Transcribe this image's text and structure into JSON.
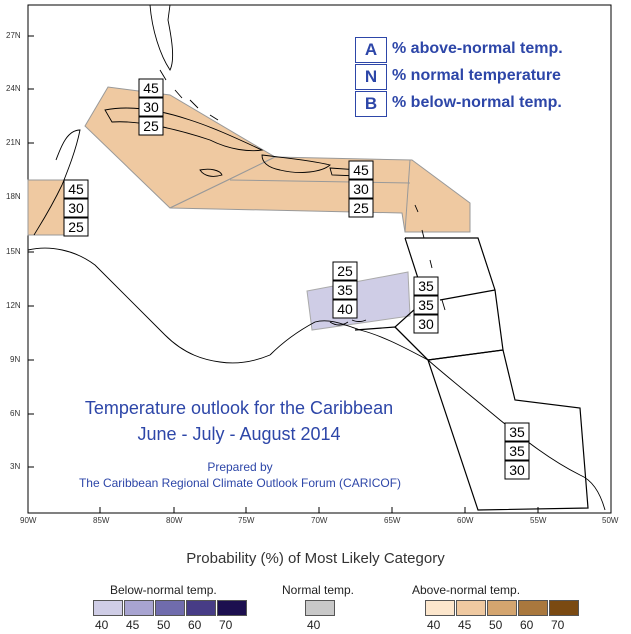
{
  "legend": [
    {
      "key": "A",
      "text": "% above-normal temp."
    },
    {
      "key": "N",
      "text": "% normal temperature"
    },
    {
      "key": "B",
      "text": "% below-normal temp."
    }
  ],
  "title": {
    "line1": "Temperature outlook for the Caribbean",
    "line2": "June - July - August 2014"
  },
  "prepared": {
    "line1": "Prepared by",
    "line2": "The Caribbean Regional Climate Outlook Forum (CARICOF)"
  },
  "axes": {
    "lat_labels": [
      "27N",
      "24N",
      "21N",
      "18N",
      "15N",
      "12N",
      "9N",
      "6N",
      "3N"
    ],
    "lon_labels": [
      "90W",
      "85W",
      "80W",
      "75W",
      "70W",
      "65W",
      "60W",
      "55W",
      "50W"
    ]
  },
  "zones": [
    {
      "id": "central-america-north",
      "category": "above",
      "probs": [
        "45",
        "30",
        "25"
      ],
      "fill": "#efc9a1"
    },
    {
      "id": "cuba-bahamas",
      "category": "above",
      "probs": [
        "45",
        "30",
        "25"
      ],
      "fill": "#efc9a1"
    },
    {
      "id": "greater-antilles",
      "category": "above",
      "probs": [
        "45",
        "30",
        "25"
      ],
      "fill": "#efc9a1"
    },
    {
      "id": "abc-islands",
      "category": "below",
      "probs": [
        "25",
        "35",
        "40"
      ],
      "fill": "#cfcde6"
    },
    {
      "id": "lesser-antilles",
      "category": "normal",
      "probs": [
        "35",
        "35",
        "30"
      ],
      "fill": "none"
    },
    {
      "id": "guianas",
      "category": "normal",
      "probs": [
        "35",
        "35",
        "30"
      ],
      "fill": "none"
    }
  ],
  "colorbar": {
    "title": "Probability (%) of Most Likely Category",
    "below": {
      "label": "Below-normal temp.",
      "values": [
        "40",
        "45",
        "50",
        "60",
        "70"
      ],
      "colors": [
        "#cfcde6",
        "#a8a4d1",
        "#706cad",
        "#473c86",
        "#1c0f4f"
      ]
    },
    "normal": {
      "label": "Normal temp.",
      "values": [
        "40"
      ],
      "colors": [
        "#c8c8c8"
      ]
    },
    "above": {
      "label": "Above-normal temp.",
      "values": [
        "40",
        "45",
        "50",
        "60",
        "70"
      ],
      "colors": [
        "#fce6cc",
        "#efc9a1",
        "#d4a56f",
        "#a9783e",
        "#7a4a12"
      ]
    }
  }
}
